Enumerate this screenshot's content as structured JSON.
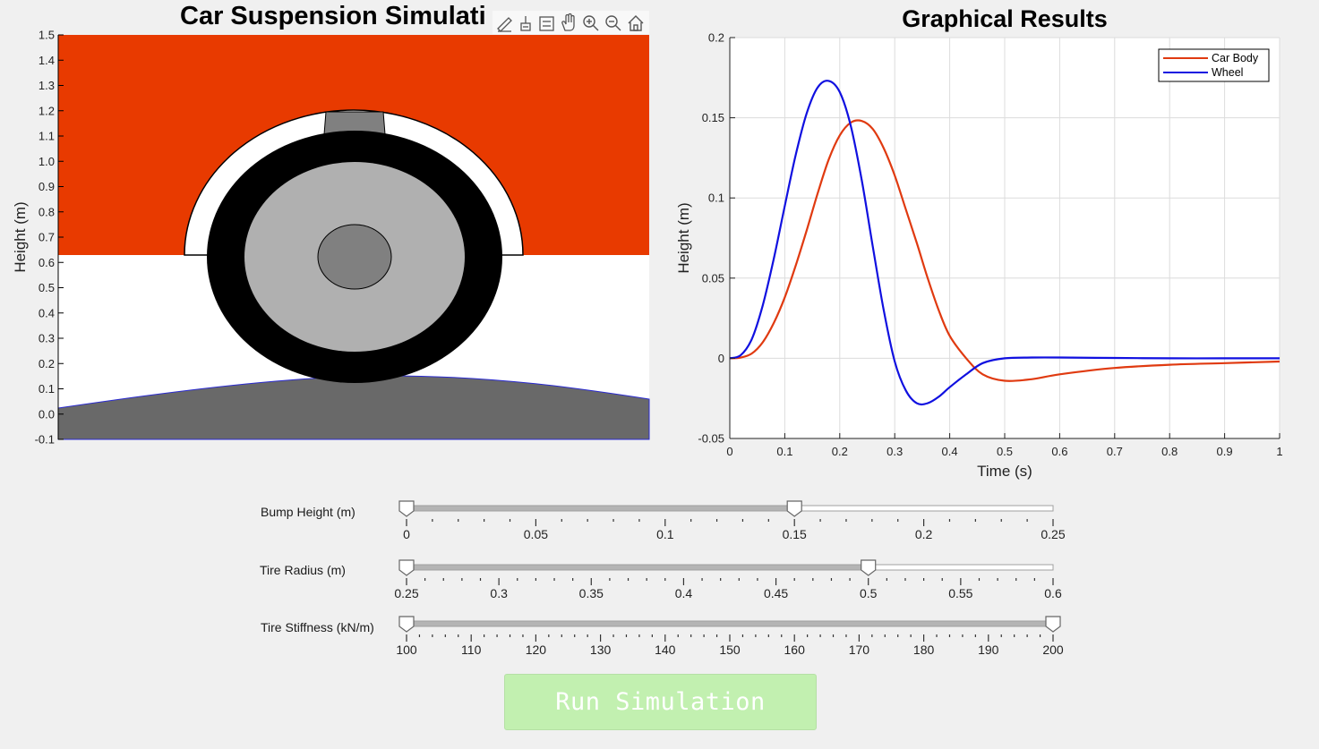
{
  "left_axes": {
    "title": "Car Suspension Simulati",
    "ylabel": "Height (m)",
    "yticks": [
      "1.5",
      "1.4",
      "1.3",
      "1.2",
      "1.1",
      "1.0",
      "0.9",
      "0.8",
      "0.7",
      "0.6",
      "0.5",
      "0.4",
      "0.3",
      "0.2",
      "0.1",
      "0.0",
      "-0.1"
    ],
    "ylim": [
      -0.1,
      1.5
    ],
    "colors": {
      "body": "#e83a00",
      "road": "#696969",
      "tire": "#000000",
      "rim": "#b0b0b0",
      "hub": "#808080",
      "strut": "#808080"
    }
  },
  "axes_toolbar": {
    "icons": [
      "data-tips-icon",
      "brush-icon",
      "datatip-list-icon",
      "pan-icon",
      "zoom-in-icon",
      "zoom-out-icon",
      "home-icon"
    ]
  },
  "chart_data": {
    "type": "line",
    "title": "Graphical Results",
    "xlabel": "Time (s)",
    "ylabel": "Height (m)",
    "xlim": [
      0,
      1
    ],
    "ylim": [
      -0.05,
      0.2
    ],
    "xticks": [
      "0",
      "0.1",
      "0.2",
      "0.3",
      "0.4",
      "0.5",
      "0.6",
      "0.7",
      "0.8",
      "0.9",
      "1"
    ],
    "yticks": [
      "0.2",
      "0.15",
      "0.1",
      "0.05",
      "0",
      "-0.05"
    ],
    "grid": true,
    "legend_position": "top-right",
    "series": [
      {
        "name": "Car Body",
        "color": "#e03a10",
        "x": [
          0,
          0.02,
          0.04,
          0.06,
          0.08,
          0.1,
          0.12,
          0.14,
          0.16,
          0.18,
          0.2,
          0.22,
          0.24,
          0.26,
          0.28,
          0.3,
          0.32,
          0.34,
          0.36,
          0.38,
          0.4,
          0.43,
          0.46,
          0.5,
          0.55,
          0.6,
          0.7,
          0.8,
          0.9,
          1.0
        ],
        "y": [
          0,
          0.0005,
          0.003,
          0.01,
          0.022,
          0.038,
          0.058,
          0.08,
          0.103,
          0.124,
          0.139,
          0.147,
          0.148,
          0.143,
          0.131,
          0.114,
          0.093,
          0.072,
          0.05,
          0.03,
          0.014,
          0.0,
          -0.01,
          -0.014,
          -0.013,
          -0.01,
          -0.006,
          -0.004,
          -0.003,
          -0.002
        ]
      },
      {
        "name": "Wheel",
        "color": "#1010e0",
        "x": [
          0,
          0.02,
          0.04,
          0.06,
          0.08,
          0.1,
          0.12,
          0.14,
          0.16,
          0.18,
          0.2,
          0.22,
          0.24,
          0.26,
          0.28,
          0.3,
          0.32,
          0.34,
          0.36,
          0.38,
          0.4,
          0.43,
          0.46,
          0.5,
          0.55,
          0.6,
          0.7,
          0.8,
          0.9,
          1.0
        ],
        "y": [
          0,
          0.002,
          0.012,
          0.033,
          0.062,
          0.095,
          0.127,
          0.153,
          0.169,
          0.173,
          0.166,
          0.145,
          0.111,
          0.07,
          0.03,
          -0.002,
          -0.02,
          -0.028,
          -0.028,
          -0.024,
          -0.018,
          -0.01,
          -0.003,
          0.0,
          0.0005,
          0.0005,
          0.0002,
          0.0,
          0.0,
          0.0
        ]
      }
    ]
  },
  "sliders": [
    {
      "label": "Bump Height (m)",
      "min": 0,
      "max": 0.25,
      "value": 0.15,
      "tick_labels": [
        "0",
        "0.05",
        "0.1",
        "0.15",
        "0.2",
        "0.25"
      ]
    },
    {
      "label": "Tire Radius (m)",
      "min": 0.25,
      "max": 0.6,
      "value": 0.5,
      "tick_labels": [
        "0.25",
        "0.3",
        "0.35",
        "0.4",
        "0.45",
        "0.5",
        "0.55",
        "0.6"
      ]
    },
    {
      "label": "Tire Stiffness (kN/m)",
      "min": 100,
      "max": 200,
      "value": 200,
      "tick_labels": [
        "100",
        "110",
        "120",
        "130",
        "140",
        "150",
        "160",
        "170",
        "180",
        "190",
        "200"
      ]
    }
  ],
  "run_button": {
    "label": "Run Simulation",
    "color": "#c2f0b0"
  }
}
